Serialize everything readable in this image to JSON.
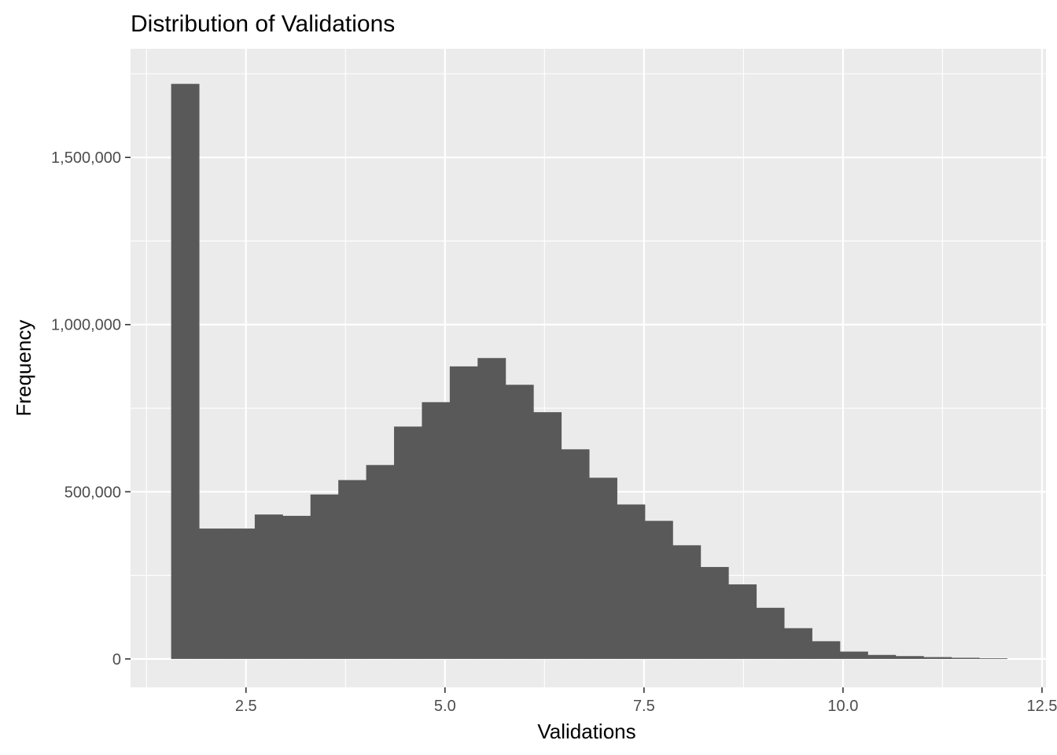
{
  "chart_data": {
    "type": "bar",
    "title": "Distribution of Validations",
    "xlabel": "Validations",
    "ylabel": "Frequency",
    "xlim": [
      1.05,
      12.55
    ],
    "ylim": [
      -85000,
      1825000
    ],
    "x_ticks": [
      2.5,
      5.0,
      7.5,
      10.0,
      12.5
    ],
    "x_tick_labels": [
      "2.5",
      "5.0",
      "7.5",
      "10.0",
      "12.5"
    ],
    "x_minor_ticks": [
      1.25,
      3.75,
      6.25,
      8.75,
      11.25
    ],
    "y_ticks": [
      0,
      500000,
      1000000,
      1500000
    ],
    "y_tick_labels": [
      "0",
      "500,000",
      "1,000,000",
      "1,500,000"
    ],
    "y_minor_ticks": [
      250000,
      750000,
      1250000,
      1750000
    ],
    "bin_width": 0.35,
    "bin_left_edges": [
      1.56,
      1.91,
      2.26,
      2.61,
      2.96,
      3.31,
      3.66,
      4.01,
      4.36,
      4.71,
      5.06,
      5.41,
      5.76,
      6.11,
      6.46,
      6.81,
      7.16,
      7.51,
      7.86,
      8.21,
      8.56,
      8.91,
      9.26,
      9.61,
      9.96,
      10.31,
      10.66,
      11.01,
      11.36,
      11.71
    ],
    "values": [
      1720000,
      390000,
      390000,
      432000,
      428000,
      492000,
      535000,
      580000,
      695000,
      768000,
      875000,
      900000,
      820000,
      738000,
      627000,
      542000,
      462000,
      413000,
      340000,
      275000,
      223000,
      153000,
      92000,
      53000,
      22000,
      12000,
      8500,
      5500,
      3500,
      2000
    ],
    "grid": true,
    "bar_color": "#595959",
    "panel_background": "#ebebeb",
    "grid_color": "#ffffff"
  }
}
